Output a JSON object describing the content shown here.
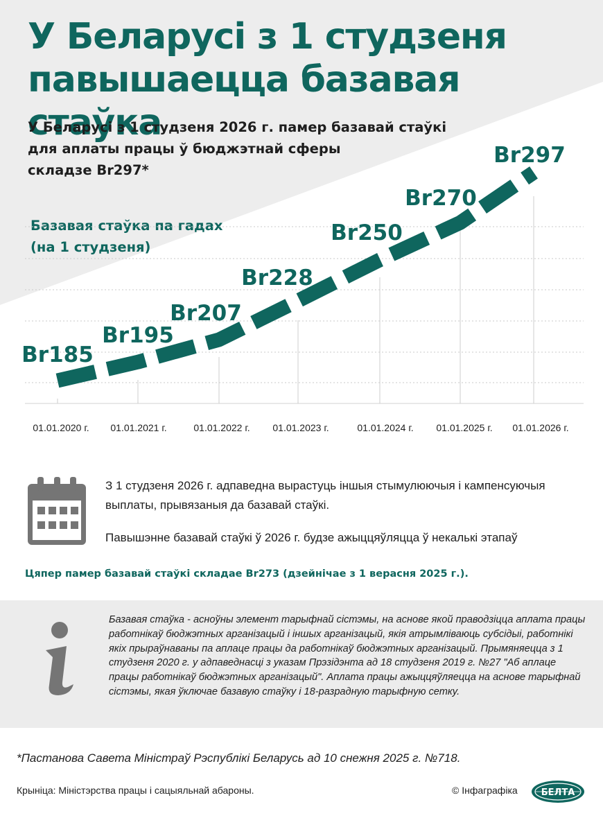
{
  "header": {
    "title_line1": "У Беларусі з 1 студзеня",
    "title_line2": "павышаецца базавая стаўка",
    "subtitle_line1": "У Беларусі з 1 студзеня 2026 г. памер базавай стаўкі",
    "subtitle_line2": "для аплаты працы ў бюджэтнай сферы",
    "subtitle_line3": "складзе Br297*"
  },
  "chart_caption": {
    "line1": "Базавая стаўка па гадах",
    "line2": "(на 1 студзеня)"
  },
  "chart_data": {
    "type": "line",
    "title": "Базавая стаўка па гадах (на 1 студзеня)",
    "categories": [
      "01.01.2020 г.",
      "01.01.2021 г.",
      "01.01.2022 г.",
      "01.01.2023 г.",
      "01.01.2024 г.",
      "01.01.2025 г.",
      "01.01.2026 г."
    ],
    "values": [
      185,
      195,
      207,
      228,
      250,
      270,
      297
    ],
    "data_labels": [
      "Br185",
      "Br195",
      "Br207",
      "Br228",
      "Br250",
      "Br270",
      "Br297"
    ],
    "unit": "Br",
    "xlabel": "",
    "ylabel": "",
    "ylim": [
      180,
      300
    ],
    "grid": true,
    "line_style": "dashed",
    "color": "#0f665e"
  },
  "info": {
    "paragraph1": "З 1 студзеня 2026 г. адпаведна вырастуць іншыя стымулюючыя і кампенсуючыя выплаты, прывязаныя да базавай стаўкі.",
    "paragraph2": "Павышэнне базавай стаўкі ў 2026 г. будзе ажыццяўляцца ў некалькі этапаў",
    "current_rate": "Цяпер памер базавай стаўкі складае Br273 (дзейнічае з 1 верасня 2025 г.).",
    "definition": "Базавая стаўка - асноўны элемент тарыфнай сістэмы, на аснове якой праводзіцца аплата працы работнікаў бюджэтных арганізацый і іншых арганізацый, якія атрымліваюць субсідыі, работнікі якіх прыраўнаваны па аплаце працы да работнікаў бюджэтных арганізацый. Прымяняецца з 1 студзеня 2020 г. у адпаведнасці з указам Прэзідэнта ад 18 студзеня 2019 г. №27 \"Аб аплаце працы работнікаў бюджэтных арганізацый\". Аплата працы ажыццяўляецца на аснове тарыфнай сістэмы, якая ўключае базавую стаўку і 18-разрадную тарыфную сетку."
  },
  "footer": {
    "footnote": "*Пастанова Савета Міністраў Рэспублікі Беларусь ад 10 снежня 2025 г. №718.",
    "source": "Крыніца: Міністэрства працы і сацыяльнай абароны.",
    "copyright": "© Інфаграфіка",
    "logo_text": "БЕЛТА"
  },
  "colors": {
    "accent": "#0f665e",
    "text": "#1e1e1e",
    "panel": "#ececec",
    "icon_gray": "#757575"
  }
}
